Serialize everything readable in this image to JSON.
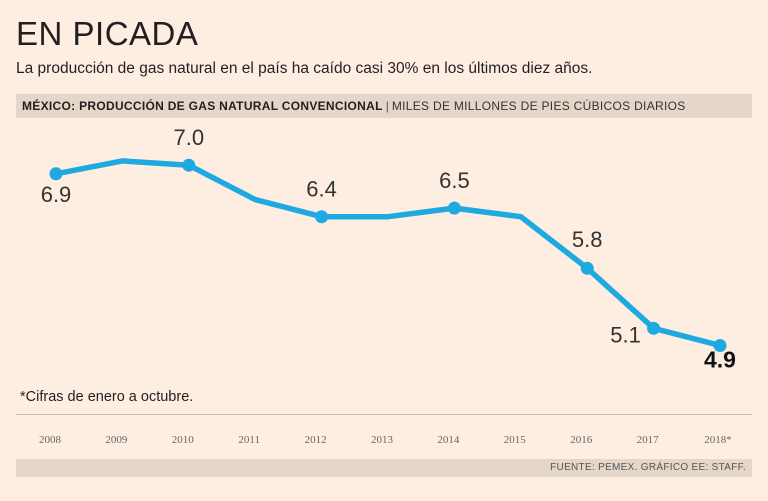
{
  "header": {
    "title": "EN PICADA",
    "subtitle": "La producción de gas natural en el país ha caído casi 30% en los últimos diez años.",
    "chart_title": "MÉXICO: PRODUCCIÓN DE GAS NATURAL CONVENCIONAL",
    "separator": "|",
    "units": "MILES DE MILLONES DE PIES CÚBICOS DIARIOS"
  },
  "footer": {
    "note": "*Cifras de enero a octubre.",
    "source": "FUENTE: PEMEX. GRÁFICO EE: STAFF."
  },
  "colors": {
    "line": "#1fa9e1",
    "background": "#fdeee1",
    "band": "#e5d6ca",
    "text": "#231f20"
  },
  "chart_data": {
    "type": "line",
    "title": "MÉXICO: PRODUCCIÓN DE GAS NATURAL CONVENCIONAL",
    "ylabel": "MILES DE MILLONES DE PIES CÚBICOS DIARIOS",
    "xlabel": "",
    "categories": [
      "2008",
      "2009",
      "2010",
      "2011",
      "2012",
      "2013",
      "2014",
      "2015",
      "2016",
      "2017",
      "2018*"
    ],
    "values": [
      6.9,
      7.05,
      7.0,
      6.6,
      6.4,
      6.4,
      6.5,
      6.4,
      5.8,
      5.1,
      4.9
    ],
    "labeled_points": [
      {
        "index": 0,
        "label": "6.9",
        "marker": true
      },
      {
        "index": 2,
        "label": "7.0",
        "marker": true
      },
      {
        "index": 4,
        "label": "6.4",
        "marker": true
      },
      {
        "index": 6,
        "label": "6.5",
        "marker": true
      },
      {
        "index": 8,
        "label": "5.8",
        "marker": true
      },
      {
        "index": 9,
        "label": "5.1",
        "marker": true
      },
      {
        "index": 10,
        "label": "4.9",
        "marker": true,
        "emphasis": true
      }
    ],
    "ylim": [
      4.3,
      7.55
    ],
    "grid": false
  }
}
